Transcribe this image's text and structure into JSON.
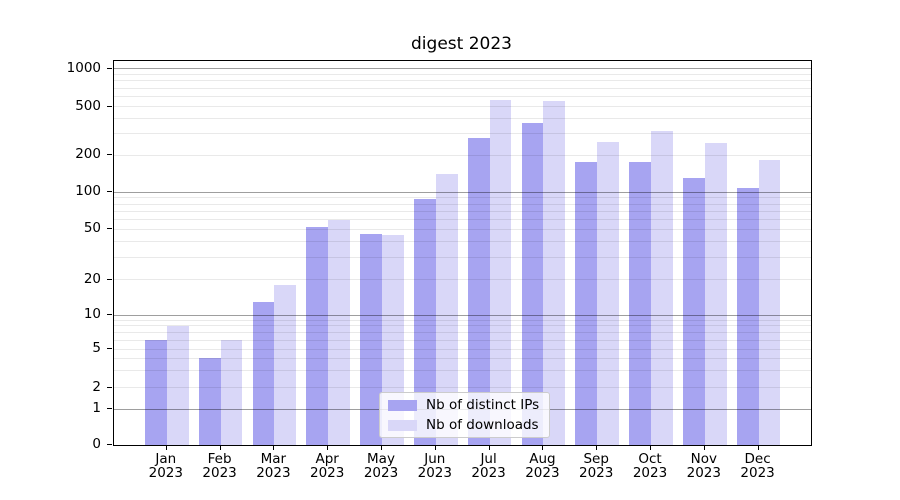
{
  "title": "digest 2023",
  "chart_data": {
    "type": "bar",
    "title": "digest 2023",
    "xlabel": "",
    "ylabel": "",
    "yscale": "symlog",
    "ylim": [
      0,
      1000
    ],
    "yticks": [
      0,
      1,
      2,
      5,
      10,
      20,
      50,
      100,
      200,
      500,
      1000
    ],
    "minor_grid_values": [
      3,
      4,
      6,
      7,
      8,
      9,
      30,
      40,
      60,
      70,
      80,
      90,
      300,
      400,
      600,
      700,
      800,
      900
    ],
    "grid": true,
    "grid_over_bars": true,
    "legend_position": "lower center",
    "categories": [
      "Jan 2023",
      "Feb 2023",
      "Mar 2023",
      "Apr 2023",
      "May 2023",
      "Jun 2023",
      "Jul 2023",
      "Aug 2023",
      "Sep 2023",
      "Oct 2023",
      "Nov 2023",
      "Dec 2023"
    ],
    "series": [
      {
        "name": "Nb of distinct IPs",
        "color": "#a7a4f1",
        "values": [
          6,
          4,
          13,
          52,
          46,
          88,
          275,
          370,
          176,
          175,
          131,
          109
        ]
      },
      {
        "name": "Nb of downloads",
        "color": "#d9d7f8",
        "values": [
          8,
          6,
          18,
          60,
          45,
          140,
          565,
          555,
          257,
          315,
          252,
          182
        ]
      }
    ]
  }
}
